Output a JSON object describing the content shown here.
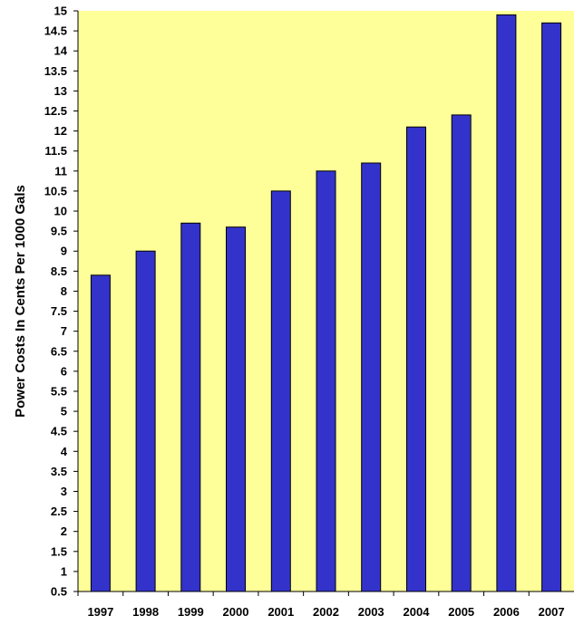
{
  "chart_data": {
    "type": "bar",
    "title": "",
    "xlabel": "",
    "ylabel": "Power Costs In Cents Per 1000 Gals",
    "categories": [
      "1997",
      "1998",
      "1999",
      "2000",
      "2001",
      "2002",
      "2003",
      "2004",
      "2005",
      "2006",
      "2007"
    ],
    "values": [
      8.4,
      9.0,
      9.7,
      9.6,
      10.5,
      11.0,
      11.2,
      12.1,
      12.4,
      14.9,
      14.7
    ],
    "ylim": [
      0.5,
      15
    ],
    "yticks": [
      "0.5",
      "1",
      "1.5",
      "2",
      "2.5",
      "3",
      "3.5",
      "4",
      "4.5",
      "5",
      "5.5",
      "6",
      "6.5",
      "7",
      "7.5",
      "8",
      "8.5",
      "9",
      "9.5",
      "10",
      "10.5",
      "11",
      "11.5",
      "12",
      "12.5",
      "13",
      "13.5",
      "14",
      "14.5",
      "15"
    ],
    "grid": false,
    "legend": "none",
    "colors": {
      "plot_background": "#ffff99",
      "bar_fill": "#3333cc",
      "bar_stroke": "#000000",
      "axis": "#000000"
    }
  }
}
